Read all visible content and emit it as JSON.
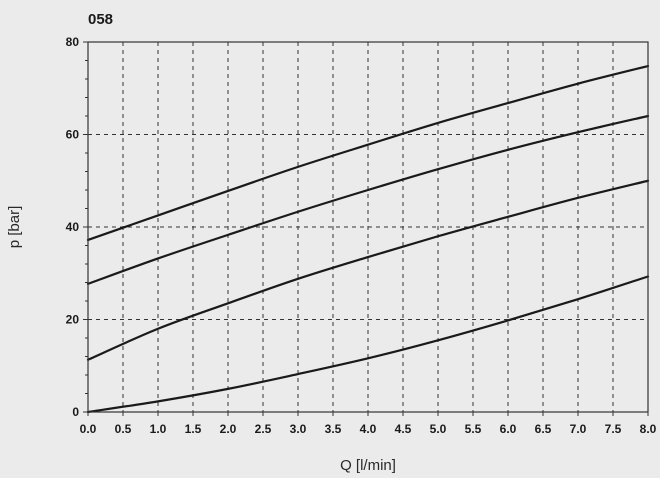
{
  "chart_data": {
    "type": "line",
    "title": "058",
    "xlabel": "Q [l/min]",
    "ylabel": "p [bar]",
    "xlim": [
      0,
      8
    ],
    "ylim": [
      0,
      80
    ],
    "grid": true,
    "x_ticks": [
      "0.0",
      "0.5",
      "1.0",
      "1.5",
      "2.0",
      "2.5",
      "3.0",
      "3.5",
      "4.0",
      "4.5",
      "5.0",
      "5.5",
      "6.0",
      "6.5",
      "7.0",
      "7.5",
      "8.0"
    ],
    "y_ticks": [
      "0",
      "20",
      "40",
      "60",
      "80"
    ],
    "series": [
      {
        "x": [
          0,
          1,
          2,
          3,
          4,
          5,
          6,
          7,
          8
        ],
        "values": [
          37.2,
          42.5,
          47.8,
          53,
          57.8,
          62.5,
          66.8,
          71,
          74.8
        ]
      },
      {
        "x": [
          0,
          1,
          2,
          3,
          4,
          5,
          6,
          7,
          8
        ],
        "values": [
          27.7,
          33.2,
          38.3,
          43.3,
          48,
          52.5,
          56.7,
          60.5,
          64
        ]
      },
      {
        "x": [
          0,
          1,
          2,
          3,
          4,
          5,
          6,
          7,
          8
        ],
        "values": [
          11.3,
          18,
          23.5,
          28.8,
          33.5,
          38,
          42.2,
          46.3,
          50
        ]
      },
      {
        "x": [
          0,
          1,
          2,
          3,
          4,
          5,
          6,
          7,
          8
        ],
        "values": [
          0,
          2.3,
          5,
          8.2,
          11.6,
          15.5,
          19.8,
          24.4,
          29.3
        ]
      }
    ]
  }
}
